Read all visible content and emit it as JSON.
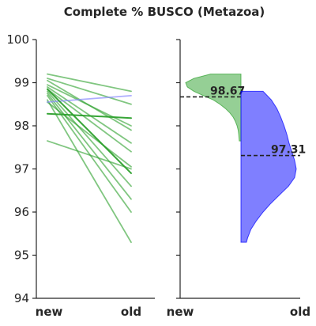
{
  "chart_data": {
    "title": "Complete % BUSCO (Metazoa)",
    "ylim": [
      94,
      100
    ],
    "yticks": [
      "94",
      "95",
      "96",
      "97",
      "98",
      "99",
      "100"
    ],
    "panels": [
      {
        "type": "line",
        "categories": [
          "new",
          "old"
        ],
        "series": [
          {
            "color": "#2ca02c",
            "highlight": false,
            "values": [
              99.2,
              98.8
            ]
          },
          {
            "color": "#2ca02c",
            "highlight": false,
            "values": [
              99.1,
              98.5
            ]
          },
          {
            "color": "#2ca02c",
            "highlight": false,
            "values": [
              99.05,
              97.9
            ]
          },
          {
            "color": "#2ca02c",
            "highlight": false,
            "values": [
              98.95,
              98.0
            ]
          },
          {
            "color": "#2ca02c",
            "highlight": false,
            "values": [
              98.9,
              97.6
            ]
          },
          {
            "color": "#2ca02c",
            "highlight": false,
            "values": [
              98.85,
              97.4
            ]
          },
          {
            "color": "#2ca02c",
            "highlight": false,
            "values": [
              98.8,
              96.6
            ]
          },
          {
            "color": "#2ca02c",
            "highlight": false,
            "values": [
              98.75,
              96.3
            ]
          },
          {
            "color": "#2ca02c",
            "highlight": false,
            "values": [
              98.7,
              96.0
            ]
          },
          {
            "color": "#2ca02c",
            "highlight": false,
            "values": [
              98.6,
              95.3
            ]
          },
          {
            "color": "#2ca02c",
            "highlight": false,
            "values": [
              98.55,
              97.05
            ]
          },
          {
            "color": "#2ca02c",
            "highlight": false,
            "values": [
              97.65,
              97.0
            ]
          },
          {
            "color": "#2ca02c",
            "highlight": true,
            "values": [
              98.85,
              96.9
            ]
          },
          {
            "color": "#2ca02c",
            "highlight": true,
            "values": [
              98.28,
              98.18
            ]
          },
          {
            "color": "#8b8bff",
            "highlight": false,
            "values": [
              98.55,
              98.7
            ]
          }
        ]
      },
      {
        "type": "violin",
        "categories": [
          "new",
          "old"
        ],
        "halves": [
          {
            "category": "new",
            "side": "left",
            "color": "#2ca02c",
            "median": 98.67,
            "median_label": "98.67",
            "range": [
              97.65,
              99.2
            ],
            "profile": [
              [
                99.2,
                0.55
              ],
              [
                99.1,
                0.85
              ],
              [
                99.0,
                1.0
              ],
              [
                98.9,
                0.97
              ],
              [
                98.8,
                0.85
              ],
              [
                98.7,
                0.68
              ],
              [
                98.6,
                0.5
              ],
              [
                98.5,
                0.38
              ],
              [
                98.4,
                0.28
              ],
              [
                98.3,
                0.2
              ],
              [
                98.2,
                0.14
              ],
              [
                98.1,
                0.1
              ],
              [
                98.0,
                0.07
              ],
              [
                97.9,
                0.05
              ],
              [
                97.8,
                0.04
              ],
              [
                97.65,
                0.03
              ]
            ]
          },
          {
            "category": "old",
            "side": "right",
            "color": "#0000ff",
            "median": 97.31,
            "median_label": "97.31",
            "range": [
              95.3,
              98.8
            ],
            "profile": [
              [
                98.8,
                0.4
              ],
              [
                98.6,
                0.55
              ],
              [
                98.4,
                0.65
              ],
              [
                98.2,
                0.72
              ],
              [
                98.0,
                0.78
              ],
              [
                97.8,
                0.83
              ],
              [
                97.6,
                0.87
              ],
              [
                97.4,
                0.92
              ],
              [
                97.2,
                0.97
              ],
              [
                97.0,
                1.0
              ],
              [
                96.8,
                0.97
              ],
              [
                96.6,
                0.86
              ],
              [
                96.4,
                0.7
              ],
              [
                96.2,
                0.54
              ],
              [
                96.0,
                0.4
              ],
              [
                95.8,
                0.28
              ],
              [
                95.6,
                0.18
              ],
              [
                95.4,
                0.12
              ],
              [
                95.3,
                0.1
              ]
            ]
          }
        ]
      }
    ]
  }
}
